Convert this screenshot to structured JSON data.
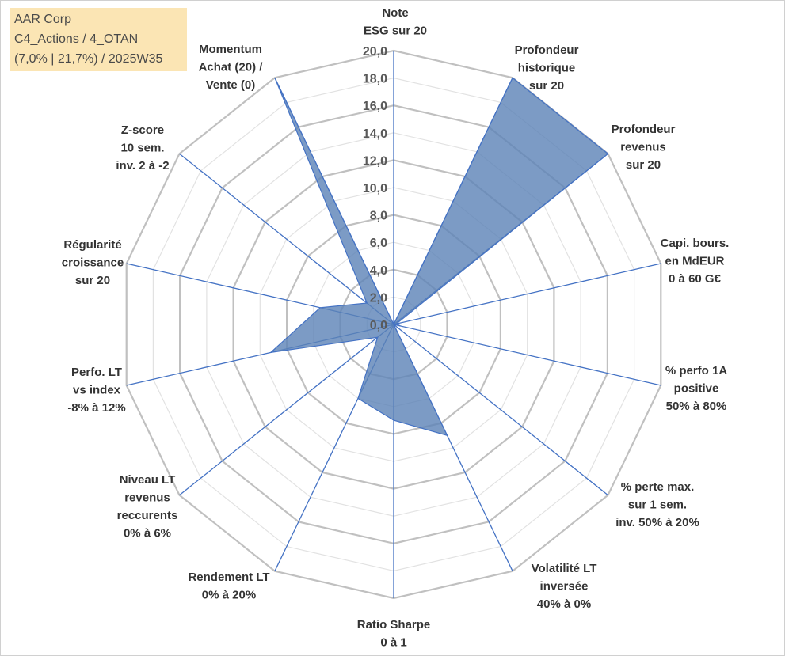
{
  "info_box": {
    "line1": "AAR Corp",
    "line2": "C4_Actions / 4_OTAN",
    "line3": "(7,0% | 21,7%) / 2025W35"
  },
  "colors": {
    "fill": "#5b82b6",
    "line": "#4472c4",
    "grid": "#bfbfbf",
    "info_box_bg": "#fbe5b4"
  },
  "chart_data": {
    "type": "radar",
    "title": "",
    "range": [
      0,
      20
    ],
    "tick_step": 2,
    "tick_labels": [
      "0,0",
      "2,0",
      "4,0",
      "6,0",
      "8,0",
      "10,0",
      "12,0",
      "14,0",
      "16,0",
      "18,0",
      "20,0"
    ],
    "axes": [
      [
        "Note",
        "ESG sur 20"
      ],
      [
        "Profondeur",
        "historique",
        "sur 20"
      ],
      [
        "Profondeur",
        "revenus",
        "sur 20"
      ],
      [
        "Capi. bours.",
        "en MdEUR",
        "0 à 60 G€"
      ],
      [
        "% perfo 1A",
        "positive",
        "50% à 80%"
      ],
      [
        "% perte max.",
        "sur 1 sem.",
        "inv. 50% à 20%"
      ],
      [
        "Volatilité LT",
        "inversée",
        "40% à 0%"
      ],
      [
        "Ratio Sharpe",
        "0 à 1"
      ],
      [
        "Rendement LT",
        "0% à 20%"
      ],
      [
        "Niveau LT",
        "revenus",
        "reccurents",
        "0% à 6%"
      ],
      [
        "Perfo. LT",
        "vs index",
        "-8% à 12%"
      ],
      [
        "Régularité",
        "croissance",
        "sur 20"
      ],
      [
        "Z-score",
        "10 sem.",
        "inv. 2 à -2"
      ],
      [
        "Momentum",
        "Achat (20) /",
        "Vente (0)"
      ]
    ],
    "series": [
      {
        "values": [
          0,
          20,
          20,
          0.2,
          0.5,
          0,
          9,
          7,
          6,
          1.5,
          9.2,
          5.5,
          2.5,
          20
        ]
      }
    ]
  }
}
